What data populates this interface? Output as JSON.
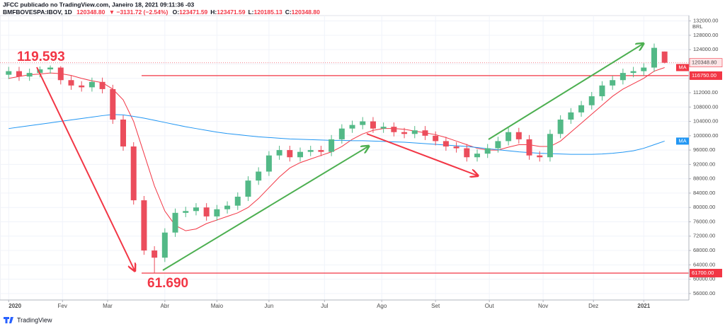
{
  "chart_data": {
    "type": "candlestick",
    "title": "JFCC publicado no TradingView.com, Janeiro 18, 2021 09:11:36 -03",
    "subtitle": {
      "symbol": "BMFBOVESPA:IBOV, 1D",
      "last": "120348.80",
      "change": "▼ −3131.72 (−2.54%)",
      "ohlc": [
        {
          "k": "O:",
          "v": "123471.59"
        },
        {
          "k": "H:",
          "v": "123471.59"
        },
        {
          "k": "L:",
          "v": "120185.13"
        },
        {
          "k": "C:",
          "v": "120348.80"
        }
      ]
    },
    "currency": "BRL",
    "up_color": "#53b987",
    "down_color": "#eb4d5c",
    "x": [
      0,
      6,
      12,
      18,
      24,
      30,
      36,
      42,
      48,
      54,
      60,
      66,
      72,
      78,
      84,
      90,
      96,
      102,
      108,
      114,
      120,
      126,
      132,
      138,
      144,
      150,
      156,
      162,
      168,
      174,
      180,
      186,
      192,
      198,
      204,
      210,
      216,
      222,
      228,
      234,
      240,
      246,
      252,
      258,
      264,
      270,
      276,
      282,
      288,
      294,
      300,
      306,
      312,
      318,
      324,
      330,
      336,
      342,
      348,
      354,
      360,
      366,
      372,
      378
    ],
    "open": [
      117000,
      118000,
      116500,
      117500,
      118500,
      119000,
      115500,
      114000,
      113500,
      115000,
      113000,
      104500,
      97000,
      82000,
      68000,
      66000,
      73000,
      78500,
      79000,
      80000,
      77500,
      79500,
      80500,
      83000,
      87500,
      90000,
      94500,
      96000,
      94000,
      95500,
      96000,
      95500,
      99000,
      102000,
      103000,
      104000,
      102000,
      102500,
      101000,
      100500,
      101500,
      100000,
      98500,
      97000,
      96500,
      94000,
      95000,
      96500,
      98500,
      101000,
      99000,
      94500,
      94000,
      100500,
      104500,
      106500,
      108500,
      111000,
      114000,
      115500,
      117500,
      118000,
      119000,
      123471.59
    ],
    "high": [
      119200,
      119200,
      118700,
      119300,
      119593,
      119400,
      116700,
      115200,
      116200,
      116200,
      114200,
      105700,
      98200,
      83200,
      69200,
      74200,
      79700,
      80200,
      81200,
      81200,
      80700,
      81700,
      84200,
      88700,
      91200,
      95700,
      97200,
      97200,
      96700,
      97200,
      97200,
      100200,
      103200,
      104200,
      105200,
      105200,
      103700,
      103700,
      102200,
      102700,
      102700,
      101200,
      99700,
      98200,
      97700,
      96200,
      97700,
      99700,
      102200,
      102200,
      100200,
      95700,
      101700,
      105700,
      107700,
      109700,
      112200,
      115200,
      116700,
      118700,
      119200,
      120200,
      125700,
      123471.59
    ],
    "low": [
      115800,
      115300,
      115300,
      116300,
      117300,
      114300,
      112800,
      112300,
      112300,
      111800,
      103300,
      95800,
      80800,
      66800,
      61690,
      64800,
      71800,
      77300,
      77800,
      76300,
      76300,
      78300,
      79300,
      81800,
      86300,
      88800,
      93300,
      92800,
      92800,
      94300,
      94300,
      94300,
      97800,
      100800,
      101800,
      100800,
      100800,
      99800,
      99300,
      99300,
      98800,
      97300,
      95800,
      95300,
      92800,
      92800,
      93800,
      95300,
      97300,
      97800,
      93300,
      92800,
      92800,
      99300,
      103300,
      105300,
      107300,
      109800,
      112800,
      114300,
      116300,
      116800,
      117800,
      120185.13
    ],
    "close": [
      118000,
      116500,
      117500,
      118500,
      119000,
      115500,
      114000,
      113500,
      115000,
      113000,
      104500,
      97000,
      82000,
      68000,
      66000,
      73000,
      78500,
      79000,
      80000,
      77500,
      79500,
      80500,
      83000,
      87500,
      90000,
      94500,
      96000,
      94000,
      95500,
      96000,
      95500,
      99000,
      102000,
      103000,
      104000,
      102000,
      102500,
      101000,
      100500,
      101500,
      100000,
      98500,
      97000,
      96500,
      94000,
      95000,
      96500,
      98500,
      101000,
      99000,
      94500,
      94000,
      100500,
      104500,
      106500,
      108500,
      111000,
      114000,
      115500,
      117500,
      118000,
      119000,
      124500,
      120348.8
    ],
    "series": [
      {
        "name": "MA",
        "color": "#f23645",
        "values": [
          116000,
          116500,
          117000,
          117200,
          117500,
          117300,
          116800,
          116000,
          115300,
          114800,
          113000,
          110000,
          104000,
          95000,
          86000,
          79000,
          75000,
          73500,
          74000,
          75500,
          76500,
          77500,
          78500,
          80000,
          82500,
          85500,
          88500,
          91000,
          92500,
          93500,
          94500,
          95500,
          97000,
          99000,
          100500,
          101500,
          102000,
          102000,
          101800,
          101300,
          100800,
          100300,
          99500,
          98500,
          97500,
          96500,
          96000,
          96000,
          96800,
          97500,
          97500,
          97000,
          97000,
          98500,
          101000,
          103500,
          106000,
          108500,
          111000,
          113000,
          114500,
          116000,
          118000,
          119000
        ]
      },
      {
        "name": "MA",
        "color": "#2196f3",
        "values": [
          102000,
          102400,
          102800,
          103200,
          103600,
          104000,
          104400,
          104800,
          105200,
          105600,
          105900,
          105800,
          105400,
          104900,
          104300,
          103700,
          103100,
          102500,
          102000,
          101500,
          101000,
          100600,
          100300,
          100000,
          99700,
          99500,
          99300,
          99100,
          99000,
          98900,
          98800,
          98700,
          98700,
          98600,
          98600,
          98500,
          98400,
          98300,
          98200,
          98000,
          97800,
          97600,
          97400,
          97200,
          97000,
          96700,
          96400,
          96100,
          95800,
          95500,
          95300,
          95100,
          95000,
          94900,
          94800,
          94800,
          94800,
          94900,
          95100,
          95400,
          95800,
          96500,
          97500,
          98500
        ]
      }
    ],
    "xlim": [
      -5,
      392
    ],
    "xticks": [
      {
        "value": 0,
        "label": "2020"
      },
      {
        "value": 31,
        "label": "Fev"
      },
      {
        "value": 57,
        "label": "Mar"
      },
      {
        "value": 90,
        "label": "Abr"
      },
      {
        "value": 120,
        "label": "Maio"
      },
      {
        "value": 150,
        "label": "Jun"
      },
      {
        "value": 182,
        "label": "Jul"
      },
      {
        "value": 215,
        "label": "Ago"
      },
      {
        "value": 246,
        "label": "Set"
      },
      {
        "value": 277,
        "label": "Out"
      },
      {
        "value": 308,
        "label": "Nov"
      },
      {
        "value": 337,
        "label": "Dez"
      },
      {
        "value": 366,
        "label": "2021"
      }
    ],
    "ylim": [
      54200,
      133500
    ],
    "yticks": [
      {
        "value": 56000,
        "label": "56000.00"
      },
      {
        "value": 60000,
        "label": "60000.00"
      },
      {
        "value": 64000,
        "label": "64000.00"
      },
      {
        "value": 68000,
        "label": "68000.00"
      },
      {
        "value": 72000,
        "label": "72000.00"
      },
      {
        "value": 76000,
        "label": "76000.00"
      },
      {
        "value": 80000,
        "label": "80000.00"
      },
      {
        "value": 84000,
        "label": "84000.00"
      },
      {
        "value": 88000,
        "label": "88000.00"
      },
      {
        "value": 92000,
        "label": "92000.00"
      },
      {
        "value": 96000,
        "label": "96000.00"
      },
      {
        "value": 100000,
        "label": "100000.00"
      },
      {
        "value": 104000,
        "label": "104000.00"
      },
      {
        "value": 108000,
        "label": "108000.00"
      },
      {
        "value": 112000,
        "label": "112000.00"
      },
      {
        "value": 116000,
        "label": "116000.00"
      },
      {
        "value": 120000,
        "label": "120000.00"
      },
      {
        "value": 124000,
        "label": "124000.00"
      },
      {
        "value": 128000,
        "label": "128000.00"
      },
      {
        "value": 132000,
        "label": "132000.00"
      }
    ],
    "grid": true,
    "price_lines": [
      {
        "value": 116750,
        "label": "116750.00",
        "color": "#f23645"
      },
      {
        "value": 61700,
        "label": "61700.00",
        "color": "#f23645"
      }
    ],
    "last_price": {
      "value": 120348.8,
      "label": "120348.80",
      "color": "#f23645"
    },
    "annotations": [
      {
        "text": "119.593"
      },
      {
        "text": "61.690"
      }
    ],
    "brand": "TradingView"
  }
}
